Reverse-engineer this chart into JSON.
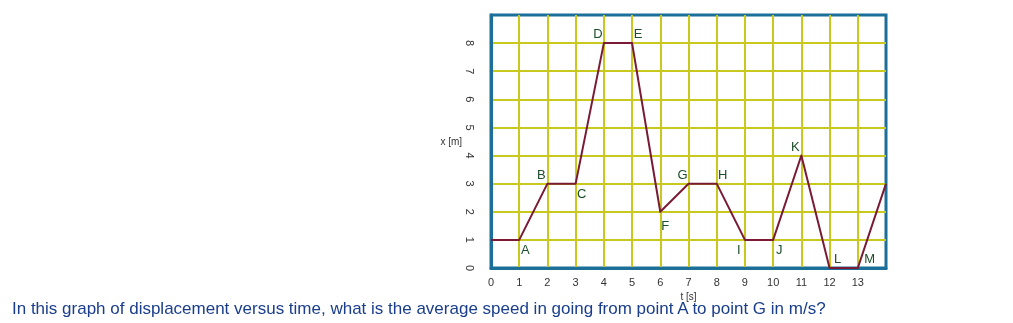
{
  "chart_data": {
    "type": "line",
    "xlabel": "t [s]",
    "ylabel": "x [m]",
    "x": [
      0,
      1,
      2,
      3,
      4,
      5,
      6,
      7,
      8,
      9,
      10,
      11,
      12,
      13,
      14
    ],
    "series": [
      {
        "color": "#7a1a35",
        "values": [
          1,
          1,
          3,
          3,
          8,
          8,
          2,
          3,
          3,
          1,
          1,
          4,
          0,
          0,
          3
        ]
      }
    ],
    "xlim": [
      0,
      14
    ],
    "xticks": [
      0,
      1,
      2,
      3,
      4,
      5,
      6,
      7,
      8,
      9,
      10,
      11,
      12,
      13
    ],
    "ylim": [
      0,
      9
    ],
    "yticks": [
      0,
      1,
      2,
      3,
      4,
      5,
      6,
      7,
      8
    ],
    "grid": true,
    "marker": "none",
    "line_style": "solid",
    "annotations": [
      {
        "text": "A",
        "x": 1,
        "y": 1
      },
      {
        "text": "B",
        "x": 2,
        "y": 3
      },
      {
        "text": "C",
        "x": 3,
        "y": 3
      },
      {
        "text": "D",
        "x": 4,
        "y": 8
      },
      {
        "text": "E",
        "x": 5,
        "y": 8
      },
      {
        "text": "F",
        "x": 6,
        "y": 2
      },
      {
        "text": "G",
        "x": 7,
        "y": 3
      },
      {
        "text": "H",
        "x": 8,
        "y": 3
      },
      {
        "text": "I",
        "x": 9,
        "y": 1
      },
      {
        "text": "J",
        "x": 10,
        "y": 1
      },
      {
        "text": "K",
        "x": 11,
        "y": 4
      },
      {
        "text": "L",
        "x": 12,
        "y": 0
      },
      {
        "text": "M",
        "x": 13,
        "y": 0
      },
      "In this graph of displacement versus time, what is the average speed in going from point A to point G in m/s?"
    ]
  }
}
